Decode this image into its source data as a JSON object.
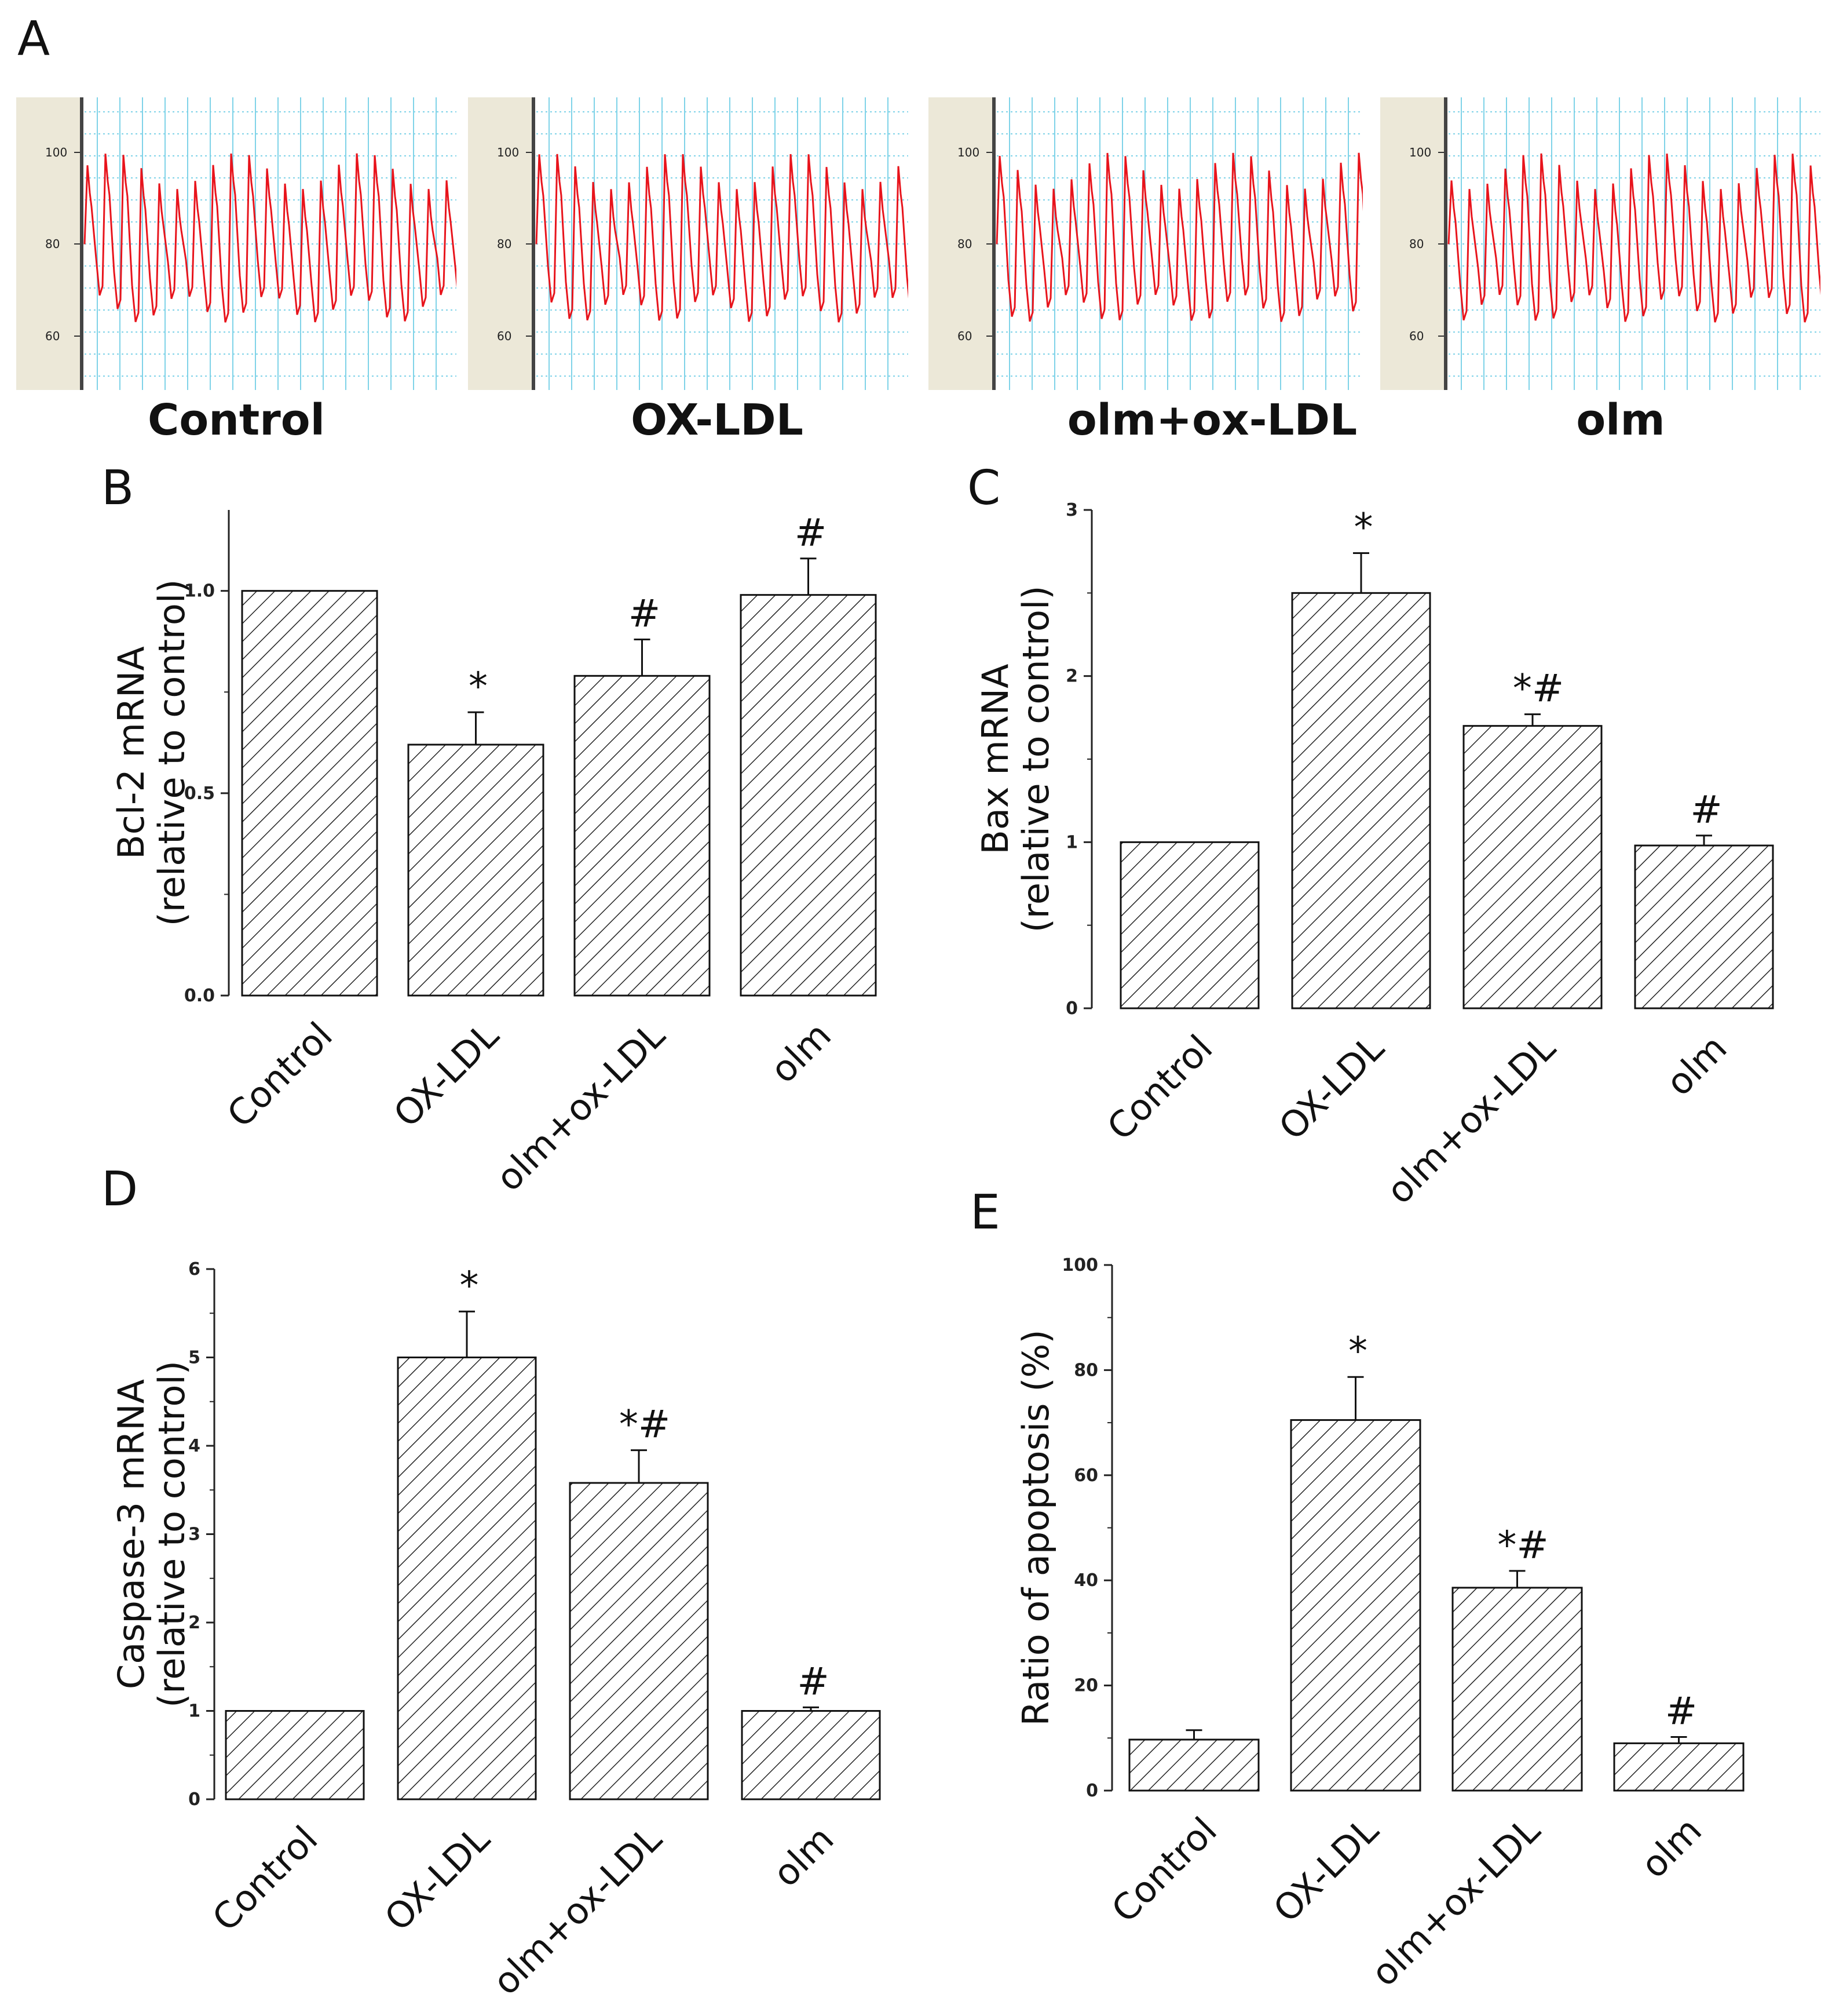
{
  "panel_a": {
    "letter": "A",
    "traces": [
      {
        "label": "Control",
        "ticks": [
          "100",
          "80",
          "60"
        ]
      },
      {
        "label": "OX-LDL",
        "ticks": [
          "100",
          "80",
          "60"
        ]
      },
      {
        "label": "olm+ox-LDL",
        "ticks": [
          "100",
          "80",
          "60"
        ]
      },
      {
        "label": "olm",
        "ticks": [
          "100",
          "80",
          "60"
        ]
      }
    ],
    "trace_color": "#e8141c",
    "grid_color": "#7fd3e8",
    "gutter_color": "#ece8d8"
  },
  "chart_data": [
    {
      "panel": "B",
      "type": "bar",
      "categories": [
        "Control",
        "OX-LDL",
        "olm+ox-LDL",
        "olm"
      ],
      "values": [
        1.0,
        0.62,
        0.79,
        0.99
      ],
      "errors": [
        0,
        0.08,
        0.09,
        0.09
      ],
      "annotations": [
        "",
        "*",
        "#",
        "#"
      ],
      "ylabel_line1": "Bcl-2 mRNA",
      "ylabel_line2": "(relative to control)",
      "ylim": [
        0,
        1.2
      ],
      "yticks": [
        0.0,
        0.5,
        1.0
      ],
      "ytick_labels": [
        "0.0",
        "0.5",
        "1.0"
      ]
    },
    {
      "panel": "C",
      "type": "bar",
      "categories": [
        "Control",
        "OX-LDL",
        "olm+ox-LDL",
        "olm"
      ],
      "values": [
        1.0,
        2.5,
        1.7,
        0.98
      ],
      "errors": [
        0,
        0.24,
        0.07,
        0.06
      ],
      "annotations": [
        "",
        "*",
        "*#",
        "#"
      ],
      "ylabel_line1": "Bax mRNA",
      "ylabel_line2": "(relative to control)",
      "ylim": [
        0,
        3
      ],
      "yticks": [
        0,
        1,
        2,
        3
      ],
      "ytick_labels": [
        "0",
        "1",
        "2",
        "3"
      ]
    },
    {
      "panel": "D",
      "type": "bar",
      "categories": [
        "Control",
        "OX-LDL",
        "olm+ox-LDL",
        "olm"
      ],
      "values": [
        1.0,
        5.0,
        3.58,
        1.0
      ],
      "errors": [
        0,
        0.52,
        0.37,
        0.04
      ],
      "annotations": [
        "",
        "*",
        "*#",
        "#"
      ],
      "ylabel_line1": "Caspase-3 mRNA",
      "ylabel_line2": "(relative to control)",
      "ylim": [
        0,
        6
      ],
      "yticks": [
        0,
        1,
        2,
        3,
        4,
        5,
        6
      ],
      "ytick_labels": [
        "0",
        "1",
        "2",
        "3",
        "4",
        "5",
        "6"
      ]
    },
    {
      "panel": "E",
      "type": "bar",
      "categories": [
        "Control",
        "OX-LDL",
        "olm+ox-LDL",
        "olm"
      ],
      "values": [
        9.7,
        70.5,
        38.6,
        9.0
      ],
      "errors": [
        1.8,
        8.2,
        3.2,
        1.2
      ],
      "annotations": [
        "",
        "*",
        "*#",
        "#"
      ],
      "ylabel_line1": "Ratio of apoptosis (%)",
      "ylabel_line2": "",
      "ylim": [
        0,
        100
      ],
      "yticks": [
        0,
        20,
        40,
        60,
        80,
        100
      ],
      "ytick_labels": [
        "0",
        "20",
        "40",
        "60",
        "80",
        "100"
      ]
    }
  ]
}
